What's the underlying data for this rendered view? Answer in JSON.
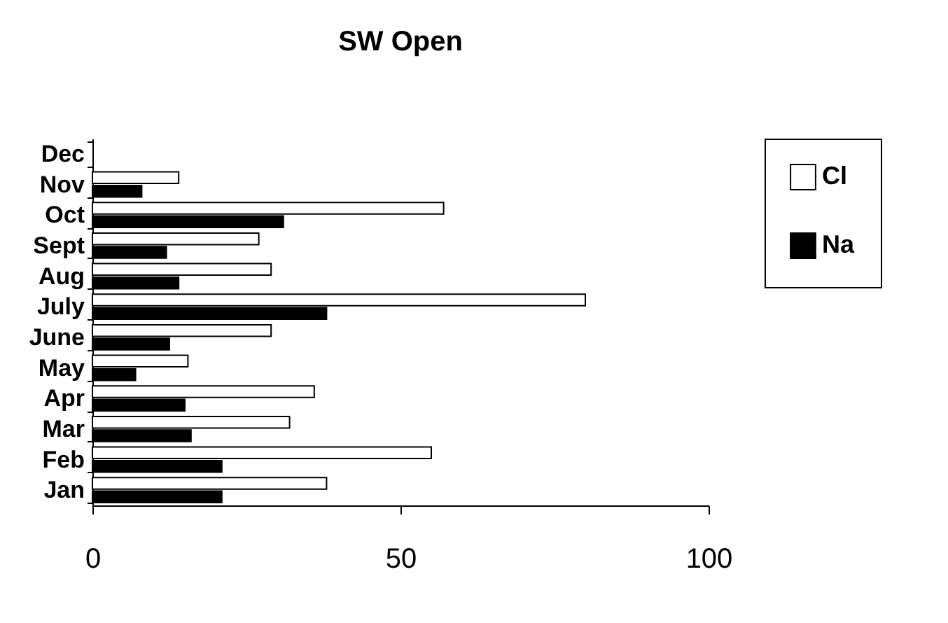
{
  "chart_data": {
    "type": "bar",
    "orientation": "horizontal",
    "title": "SW Open",
    "categories": [
      "Dec",
      "Nov",
      "Oct",
      "Sept",
      "Aug",
      "July",
      "June",
      "May",
      "Apr",
      "Mar",
      "Feb",
      "Jan"
    ],
    "series": [
      {
        "name": "Cl",
        "color": "#ffffff",
        "values": [
          null,
          14,
          57,
          27,
          29,
          80,
          29,
          15.5,
          36,
          32,
          55,
          38
        ]
      },
      {
        "name": "Na",
        "color": "#000000",
        "values": [
          null,
          8,
          31,
          12,
          14,
          38,
          12.5,
          7,
          15,
          16,
          21,
          21
        ]
      }
    ],
    "xlim": [
      0,
      100
    ],
    "xticks": [
      0,
      50,
      100
    ],
    "legend": "right"
  }
}
